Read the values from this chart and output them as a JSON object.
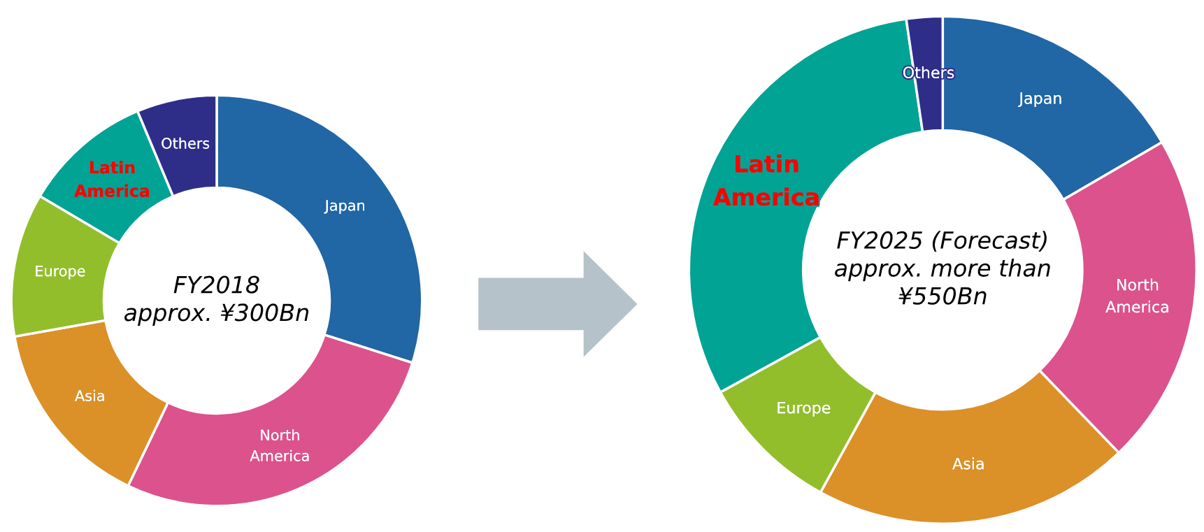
{
  "chart_data": [
    {
      "type": "donut",
      "title": "FY2018\napprox. ¥300Bn",
      "categories": [
        "Japan",
        "North America",
        "Asia",
        "Europe",
        "Latin America",
        "Others"
      ],
      "values": [
        29.9,
        27.2,
        15.1,
        11.3,
        10.2,
        6.3
      ],
      "colors": [
        "#2166a5",
        "#dc528c",
        "#db9028",
        "#92be2c",
        "#00a394",
        "#2e2e89"
      ]
    },
    {
      "type": "donut",
      "title": "FY2025 (Forecast)\napprox. more than\n¥550Bn",
      "categories": [
        "Japan",
        "North America",
        "Asia",
        "Europe",
        "Latin America",
        "Others"
      ],
      "values": [
        16.6,
        21.2,
        20.2,
        9.0,
        30.7,
        2.3
      ],
      "colors": [
        "#2166a5",
        "#dc528c",
        "#db9028",
        "#92be2c",
        "#00a394",
        "#2e2e89"
      ]
    }
  ]
}
